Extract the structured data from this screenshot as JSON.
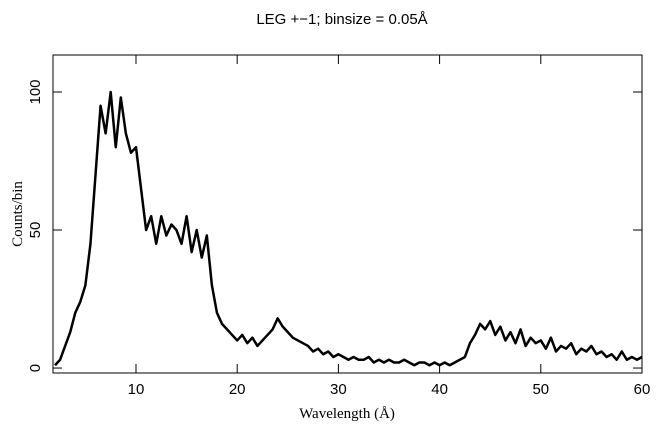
{
  "chart_data": {
    "type": "line",
    "title": "LEG +−1; binsize = 0.05Å",
    "xlabel": "Wavelength (Å)",
    "ylabel": "Counts/bin",
    "color": "#000000",
    "x": [
      2,
      2.5,
      3,
      3.5,
      4,
      4.5,
      5,
      5.5,
      6,
      6.5,
      7,
      7.5,
      8,
      8.5,
      9,
      9.5,
      10,
      10.5,
      11,
      11.5,
      12,
      12.5,
      13,
      13.5,
      14,
      14.5,
      15,
      15.5,
      16,
      16.5,
      17,
      17.5,
      18,
      18.5,
      19,
      19.5,
      20,
      20.5,
      21,
      21.5,
      22,
      22.5,
      23,
      23.5,
      24,
      24.5,
      25,
      25.5,
      26,
      26.5,
      27,
      27.5,
      28,
      28.5,
      29,
      29.5,
      30,
      30.5,
      31,
      31.5,
      32,
      32.5,
      33,
      33.5,
      34,
      34.5,
      35,
      35.5,
      36,
      36.5,
      37,
      37.5,
      38,
      38.5,
      39,
      39.5,
      40,
      40.5,
      41,
      41.5,
      42,
      42.5,
      43,
      43.5,
      44,
      44.5,
      45,
      45.5,
      46,
      46.5,
      47,
      47.5,
      48,
      48.5,
      49,
      49.5,
      50,
      50.5,
      51,
      51.5,
      52,
      52.5,
      53,
      53.5,
      54,
      54.5,
      55,
      55.5,
      56,
      56.5,
      57,
      57.5,
      58,
      58.5,
      59,
      59.5,
      60
    ],
    "values": [
      1,
      3,
      8,
      13,
      20,
      24,
      30,
      45,
      70,
      95,
      85,
      100,
      80,
      98,
      85,
      78,
      80,
      65,
      50,
      55,
      45,
      55,
      48,
      52,
      50,
      45,
      55,
      42,
      50,
      40,
      48,
      30,
      20,
      16,
      14,
      12,
      10,
      12,
      9,
      11,
      8,
      10,
      12,
      14,
      18,
      15,
      13,
      11,
      10,
      9,
      8,
      6,
      7,
      5,
      6,
      4,
      5,
      4,
      3,
      4,
      3,
      3,
      4,
      2,
      3,
      2,
      3,
      2,
      2,
      3,
      2,
      1,
      2,
      2,
      1,
      2,
      1,
      2,
      1,
      2,
      3,
      4,
      9,
      12,
      16,
      14,
      17,
      12,
      15,
      10,
      13,
      9,
      14,
      8,
      11,
      9,
      10,
      7,
      11,
      6,
      8,
      7,
      9,
      5,
      7,
      6,
      8,
      5,
      6,
      4,
      5,
      3,
      6,
      3,
      4,
      3,
      4
    ],
    "xlim": [
      1.8,
      60
    ],
    "ylim": [
      -1.8,
      113.4
    ],
    "xticks": [
      10,
      20,
      30,
      40,
      50,
      60
    ],
    "yticks": [
      0,
      50,
      100
    ]
  }
}
